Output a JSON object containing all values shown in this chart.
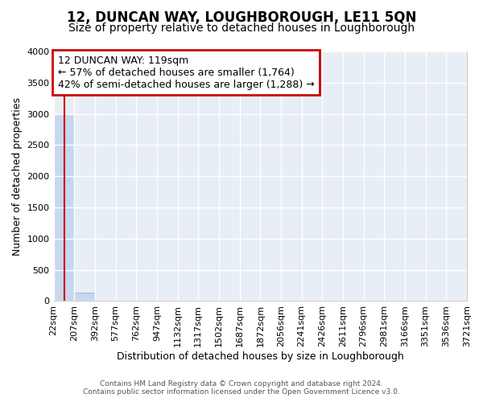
{
  "title": "12, DUNCAN WAY, LOUGHBOROUGH, LE11 5QN",
  "subtitle": "Size of property relative to detached houses in Loughborough",
  "xlabel": "Distribution of detached houses by size in Loughborough",
  "ylabel": "Number of detached properties",
  "footer_line1": "Contains HM Land Registry data © Crown copyright and database right 2024.",
  "footer_line2": "Contains public sector information licensed under the Open Government Licence v3.0.",
  "bin_edges": [
    22,
    207,
    392,
    577,
    762,
    947,
    1132,
    1317,
    1502,
    1687,
    1872,
    2056,
    2241,
    2426,
    2611,
    2796,
    2981,
    3166,
    3351,
    3536,
    3721
  ],
  "bin_labels": [
    "22sqm",
    "207sqm",
    "392sqm",
    "577sqm",
    "762sqm",
    "947sqm",
    "1132sqm",
    "1317sqm",
    "1502sqm",
    "1687sqm",
    "1872sqm",
    "2056sqm",
    "2241sqm",
    "2426sqm",
    "2611sqm",
    "2796sqm",
    "2981sqm",
    "3166sqm",
    "3351sqm",
    "3536sqm",
    "3721sqm"
  ],
  "bar_heights": [
    3000,
    130,
    5,
    3,
    2,
    2,
    1,
    1,
    1,
    1,
    1,
    0,
    0,
    0,
    0,
    0,
    0,
    0,
    0,
    0
  ],
  "bar_color": "#c5d8ed",
  "bar_edgecolor": "#8ab4d4",
  "ylim": [
    0,
    4000
  ],
  "yticks": [
    0,
    500,
    1000,
    1500,
    2000,
    2500,
    3000,
    3500,
    4000
  ],
  "property_value": 119,
  "property_line_color": "#cc0000",
  "annotation_text_line1": "12 DUNCAN WAY: 119sqm",
  "annotation_text_line2": "← 57% of detached houses are smaller (1,764)",
  "annotation_text_line3": "42% of semi-detached houses are larger (1,288) →",
  "annotation_box_color": "#cc0000",
  "background_color": "#e8eef5",
  "grid_color": "#ffffff",
  "title_fontsize": 12,
  "subtitle_fontsize": 10,
  "axis_label_fontsize": 9,
  "tick_fontsize": 8,
  "annotation_fontsize": 9
}
